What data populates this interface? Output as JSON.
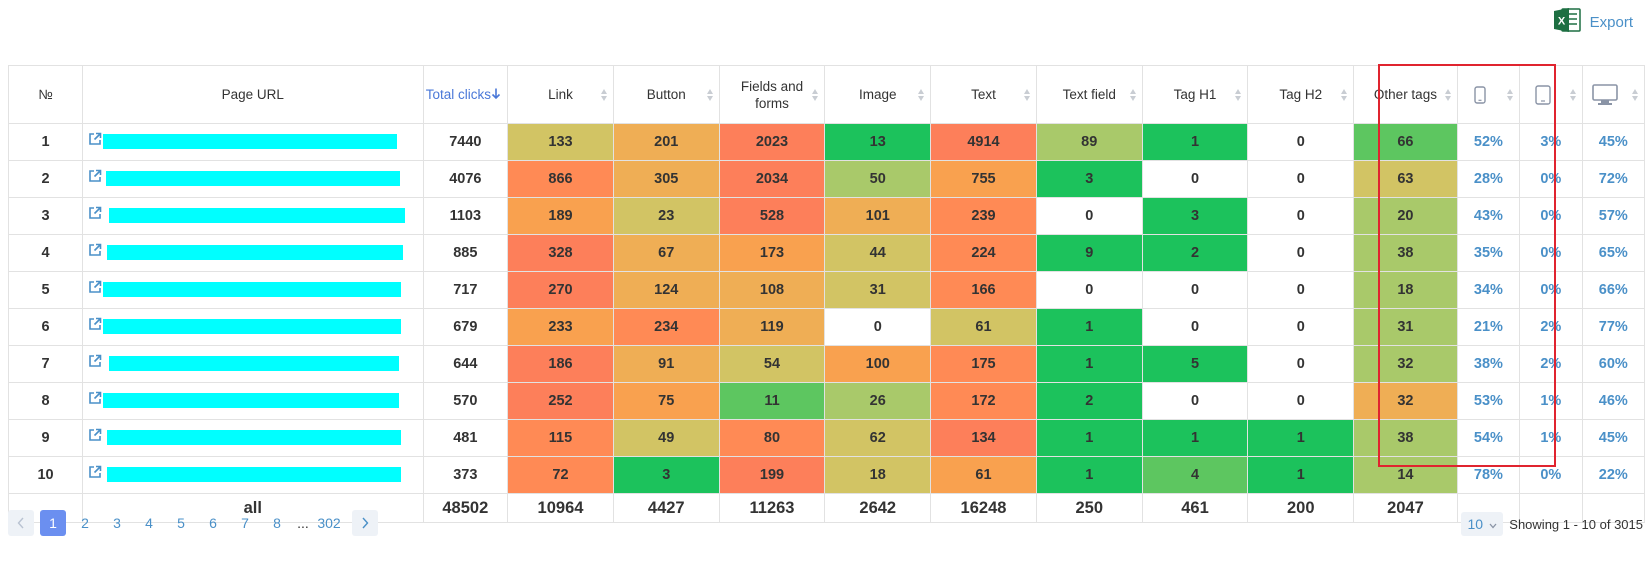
{
  "export": {
    "label": "Export",
    "icon": "excel-icon",
    "icon_color": "#1d6f42"
  },
  "table": {
    "columns": [
      {
        "key": "num",
        "label": "№"
      },
      {
        "key": "url",
        "label": "Page URL"
      },
      {
        "key": "total",
        "label": "Total clicks",
        "sorted": "desc"
      },
      {
        "key": "link",
        "label": "Link"
      },
      {
        "key": "button",
        "label": "Button"
      },
      {
        "key": "fields",
        "label": "Fields and forms"
      },
      {
        "key": "image",
        "label": "Image"
      },
      {
        "key": "text",
        "label": "Text"
      },
      {
        "key": "text_field",
        "label": "Text field"
      },
      {
        "key": "h1",
        "label": "Tag H1"
      },
      {
        "key": "h2",
        "label": "Tag H2"
      },
      {
        "key": "other",
        "label": "Other tags"
      },
      {
        "key": "mobile",
        "label": "",
        "icon": "mobile-icon"
      },
      {
        "key": "tablet",
        "label": "",
        "icon": "tablet-icon"
      },
      {
        "key": "desktop",
        "label": "",
        "icon": "desktop-icon"
      }
    ],
    "rows": [
      {
        "n": "1",
        "total": "7440",
        "cells": [
          {
            "v": "133",
            "c": "#d2c464"
          },
          {
            "v": "201",
            "c": "#efae55"
          },
          {
            "v": "2023",
            "c": "#fd7f5a"
          },
          {
            "v": "13",
            "c": "#1cc25c"
          },
          {
            "v": "4914",
            "c": "#fd7f5a"
          },
          {
            "v": "89",
            "c": "#a9c96a"
          },
          {
            "v": "1",
            "c": "#1cc25c"
          },
          {
            "v": "0",
            "c": "#ffffff"
          },
          {
            "v": "66",
            "c": "#5dc660"
          }
        ],
        "mobile": "52%",
        "tablet": "3%",
        "desktop": "45%"
      },
      {
        "n": "2",
        "total": "4076",
        "cells": [
          {
            "v": "866",
            "c": "#ff8a55"
          },
          {
            "v": "305",
            "c": "#efae55"
          },
          {
            "v": "2034",
            "c": "#fd7f5a"
          },
          {
            "v": "50",
            "c": "#a9c96a"
          },
          {
            "v": "755",
            "c": "#f9a14f"
          },
          {
            "v": "3",
            "c": "#1cc25c"
          },
          {
            "v": "0",
            "c": "#ffffff"
          },
          {
            "v": "0",
            "c": "#ffffff"
          },
          {
            "v": "63",
            "c": "#d2c464"
          }
        ],
        "mobile": "28%",
        "tablet": "0%",
        "desktop": "72%"
      },
      {
        "n": "3",
        "total": "1103",
        "cells": [
          {
            "v": "189",
            "c": "#f9a14f"
          },
          {
            "v": "23",
            "c": "#d2c464"
          },
          {
            "v": "528",
            "c": "#fd7f5a"
          },
          {
            "v": "101",
            "c": "#efae55"
          },
          {
            "v": "239",
            "c": "#ff8a55"
          },
          {
            "v": "0",
            "c": "#ffffff"
          },
          {
            "v": "3",
            "c": "#1cc25c"
          },
          {
            "v": "0",
            "c": "#ffffff"
          },
          {
            "v": "20",
            "c": "#a9c96a"
          }
        ],
        "mobile": "43%",
        "tablet": "0%",
        "desktop": "57%"
      },
      {
        "n": "4",
        "total": "885",
        "cells": [
          {
            "v": "328",
            "c": "#fd7f5a"
          },
          {
            "v": "67",
            "c": "#efae55"
          },
          {
            "v": "173",
            "c": "#f9a14f"
          },
          {
            "v": "44",
            "c": "#d2c464"
          },
          {
            "v": "224",
            "c": "#ff8a55"
          },
          {
            "v": "9",
            "c": "#1cc25c"
          },
          {
            "v": "2",
            "c": "#1cc25c"
          },
          {
            "v": "0",
            "c": "#ffffff"
          },
          {
            "v": "38",
            "c": "#a9c96a"
          }
        ],
        "mobile": "35%",
        "tablet": "0%",
        "desktop": "65%"
      },
      {
        "n": "5",
        "total": "717",
        "cells": [
          {
            "v": "270",
            "c": "#fd7f5a"
          },
          {
            "v": "124",
            "c": "#efae55"
          },
          {
            "v": "108",
            "c": "#efae55"
          },
          {
            "v": "31",
            "c": "#d2c464"
          },
          {
            "v": "166",
            "c": "#ff8a55"
          },
          {
            "v": "0",
            "c": "#ffffff"
          },
          {
            "v": "0",
            "c": "#ffffff"
          },
          {
            "v": "0",
            "c": "#ffffff"
          },
          {
            "v": "18",
            "c": "#a9c96a"
          }
        ],
        "mobile": "34%",
        "tablet": "0%",
        "desktop": "66%"
      },
      {
        "n": "6",
        "total": "679",
        "cells": [
          {
            "v": "233",
            "c": "#f9a14f"
          },
          {
            "v": "234",
            "c": "#ff8a55"
          },
          {
            "v": "119",
            "c": "#efae55"
          },
          {
            "v": "0",
            "c": "#ffffff"
          },
          {
            "v": "61",
            "c": "#d2c464"
          },
          {
            "v": "1",
            "c": "#1cc25c"
          },
          {
            "v": "0",
            "c": "#ffffff"
          },
          {
            "v": "0",
            "c": "#ffffff"
          },
          {
            "v": "31",
            "c": "#a9c96a"
          }
        ],
        "mobile": "21%",
        "tablet": "2%",
        "desktop": "77%"
      },
      {
        "n": "7",
        "total": "644",
        "cells": [
          {
            "v": "186",
            "c": "#fd7f5a"
          },
          {
            "v": "91",
            "c": "#efae55"
          },
          {
            "v": "54",
            "c": "#d2c464"
          },
          {
            "v": "100",
            "c": "#f9a14f"
          },
          {
            "v": "175",
            "c": "#ff8a55"
          },
          {
            "v": "1",
            "c": "#1cc25c"
          },
          {
            "v": "5",
            "c": "#1cc25c"
          },
          {
            "v": "0",
            "c": "#ffffff"
          },
          {
            "v": "32",
            "c": "#a9c96a"
          }
        ],
        "mobile": "38%",
        "tablet": "2%",
        "desktop": "60%"
      },
      {
        "n": "8",
        "total": "570",
        "cells": [
          {
            "v": "252",
            "c": "#fd7f5a"
          },
          {
            "v": "75",
            "c": "#f9a14f"
          },
          {
            "v": "11",
            "c": "#5dc660"
          },
          {
            "v": "26",
            "c": "#a9c96a"
          },
          {
            "v": "172",
            "c": "#ff8a55"
          },
          {
            "v": "2",
            "c": "#1cc25c"
          },
          {
            "v": "0",
            "c": "#ffffff"
          },
          {
            "v": "0",
            "c": "#ffffff"
          },
          {
            "v": "32",
            "c": "#efae55"
          }
        ],
        "mobile": "53%",
        "tablet": "1%",
        "desktop": "46%"
      },
      {
        "n": "9",
        "total": "481",
        "cells": [
          {
            "v": "115",
            "c": "#ff8a55"
          },
          {
            "v": "49",
            "c": "#d2c464"
          },
          {
            "v": "80",
            "c": "#ff8a55"
          },
          {
            "v": "62",
            "c": "#d2c464"
          },
          {
            "v": "134",
            "c": "#fd7f5a"
          },
          {
            "v": "1",
            "c": "#1cc25c"
          },
          {
            "v": "1",
            "c": "#1cc25c"
          },
          {
            "v": "1",
            "c": "#1cc25c"
          },
          {
            "v": "38",
            "c": "#a9c96a"
          }
        ],
        "mobile": "54%",
        "tablet": "1%",
        "desktop": "45%"
      },
      {
        "n": "10",
        "total": "373",
        "cells": [
          {
            "v": "72",
            "c": "#ff8a55"
          },
          {
            "v": "3",
            "c": "#1cc25c"
          },
          {
            "v": "199",
            "c": "#fd7f5a"
          },
          {
            "v": "18",
            "c": "#d2c464"
          },
          {
            "v": "61",
            "c": "#f9a14f"
          },
          {
            "v": "1",
            "c": "#1cc25c"
          },
          {
            "v": "4",
            "c": "#5dc660"
          },
          {
            "v": "1",
            "c": "#1cc25c"
          },
          {
            "v": "14",
            "c": "#a9c96a"
          }
        ],
        "mobile": "78%",
        "tablet": "0%",
        "desktop": "22%"
      }
    ],
    "totals": {
      "label": "all",
      "values": [
        "48502",
        "10964",
        "4427",
        "11263",
        "2642",
        "16248",
        "250",
        "461",
        "200",
        "2047"
      ]
    }
  },
  "pagination": {
    "pages": [
      "1",
      "2",
      "3",
      "4",
      "5",
      "6",
      "7",
      "8"
    ],
    "current": "1",
    "ellipsis": "...",
    "last": "302"
  },
  "per_page": "10",
  "showing": "Showing 1 - 10 of 3015",
  "colors": {
    "link_blue": "#4a90c8",
    "active_page": "#6b8ff0",
    "highlight_border": "#e0242f",
    "url_mask": "#00ffff"
  }
}
